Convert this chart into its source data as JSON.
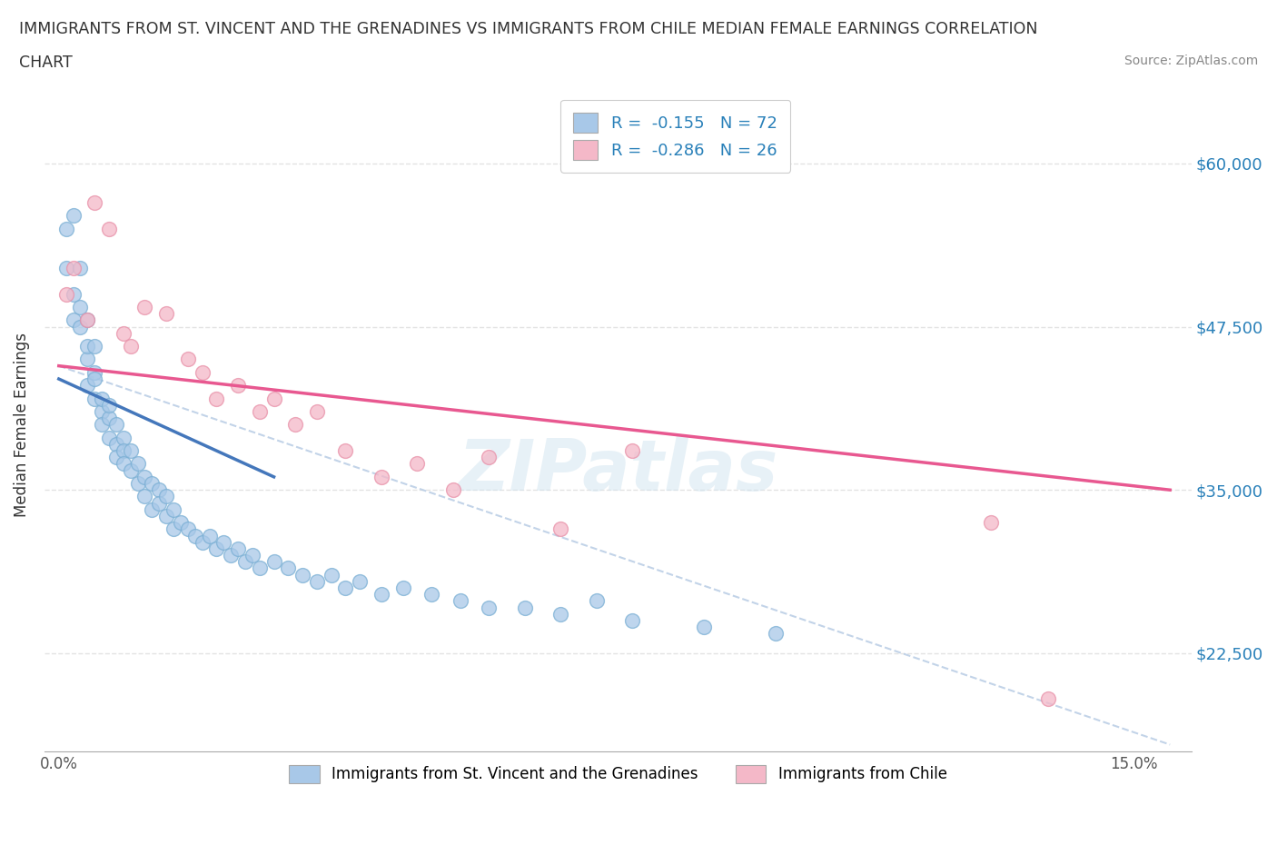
{
  "title_line1": "IMMIGRANTS FROM ST. VINCENT AND THE GRENADINES VS IMMIGRANTS FROM CHILE MEDIAN FEMALE EARNINGS CORRELATION",
  "title_line2": "CHART",
  "source": "Source: ZipAtlas.com",
  "ylabel": "Median Female Earnings",
  "xlim": [
    -0.002,
    0.158
  ],
  "ylim": [
    15000,
    65000
  ],
  "x_tick_positions": [
    0.0,
    0.03,
    0.06,
    0.09,
    0.12,
    0.15
  ],
  "x_tick_labels": [
    "0.0%",
    "",
    "",
    "",
    "",
    "15.0%"
  ],
  "y_tick_positions": [
    22500,
    35000,
    47500,
    60000
  ],
  "y_tick_labels": [
    "$22,500",
    "$35,000",
    "$47,500",
    "$60,000"
  ],
  "series1_color": "#a8c8e8",
  "series1_edge": "#7aafd4",
  "series2_color": "#f4b8c8",
  "series2_edge": "#e890a8",
  "series1_line_color": "#4477bb",
  "series2_line_color": "#e85890",
  "dashed_line_color": "#b8cce4",
  "series1_label": "Immigrants from St. Vincent and the Grenadines",
  "series2_label": "Immigrants from Chile",
  "legend_R1": "-0.155",
  "legend_N1": "72",
  "legend_R2": "-0.286",
  "legend_N2": "26",
  "watermark": "ZIPatlas",
  "background_color": "#ffffff",
  "grid_color": "#dddddd",
  "text_color": "#333333",
  "axis_label_color": "#2980b9",
  "source_color": "#888888",
  "s1_x": [
    0.001,
    0.001,
    0.002,
    0.002,
    0.002,
    0.003,
    0.003,
    0.003,
    0.004,
    0.004,
    0.004,
    0.004,
    0.005,
    0.005,
    0.005,
    0.005,
    0.006,
    0.006,
    0.006,
    0.007,
    0.007,
    0.007,
    0.008,
    0.008,
    0.008,
    0.009,
    0.009,
    0.009,
    0.01,
    0.01,
    0.011,
    0.011,
    0.012,
    0.012,
    0.013,
    0.013,
    0.014,
    0.014,
    0.015,
    0.015,
    0.016,
    0.016,
    0.017,
    0.018,
    0.019,
    0.02,
    0.021,
    0.022,
    0.023,
    0.024,
    0.025,
    0.026,
    0.027,
    0.028,
    0.03,
    0.032,
    0.034,
    0.036,
    0.038,
    0.04,
    0.042,
    0.045,
    0.048,
    0.052,
    0.056,
    0.06,
    0.065,
    0.07,
    0.075,
    0.08,
    0.09,
    0.1
  ],
  "s1_y": [
    55000,
    52000,
    56000,
    50000,
    48000,
    49000,
    47500,
    52000,
    45000,
    46000,
    43000,
    48000,
    44000,
    42000,
    43500,
    46000,
    41000,
    40000,
    42000,
    39000,
    40500,
    41500,
    38500,
    40000,
    37500,
    39000,
    38000,
    37000,
    38000,
    36500,
    37000,
    35500,
    36000,
    34500,
    35500,
    33500,
    35000,
    34000,
    34500,
    33000,
    33500,
    32000,
    32500,
    32000,
    31500,
    31000,
    31500,
    30500,
    31000,
    30000,
    30500,
    29500,
    30000,
    29000,
    29500,
    29000,
    28500,
    28000,
    28500,
    27500,
    28000,
    27000,
    27500,
    27000,
    26500,
    26000,
    26000,
    25500,
    26500,
    25000,
    24500,
    24000
  ],
  "s2_x": [
    0.001,
    0.002,
    0.004,
    0.005,
    0.007,
    0.009,
    0.01,
    0.012,
    0.015,
    0.018,
    0.02,
    0.022,
    0.025,
    0.028,
    0.03,
    0.033,
    0.036,
    0.04,
    0.045,
    0.05,
    0.055,
    0.06,
    0.07,
    0.08,
    0.13,
    0.138
  ],
  "s2_y": [
    50000,
    52000,
    48000,
    57000,
    55000,
    47000,
    46000,
    49000,
    48500,
    45000,
    44000,
    42000,
    43000,
    41000,
    42000,
    40000,
    41000,
    38000,
    36000,
    37000,
    35000,
    37500,
    32000,
    38000,
    32500,
    19000
  ],
  "blue_line_x0": 0.0,
  "blue_line_x1": 0.03,
  "blue_line_y0": 43500,
  "blue_line_y1": 36000,
  "pink_line_x0": 0.0,
  "pink_line_x1": 0.155,
  "pink_line_y0": 44500,
  "pink_line_y1": 35000,
  "dash_line_x0": 0.0,
  "dash_line_x1": 0.155,
  "dash_line_y0": 44500,
  "dash_line_y1": 15500
}
